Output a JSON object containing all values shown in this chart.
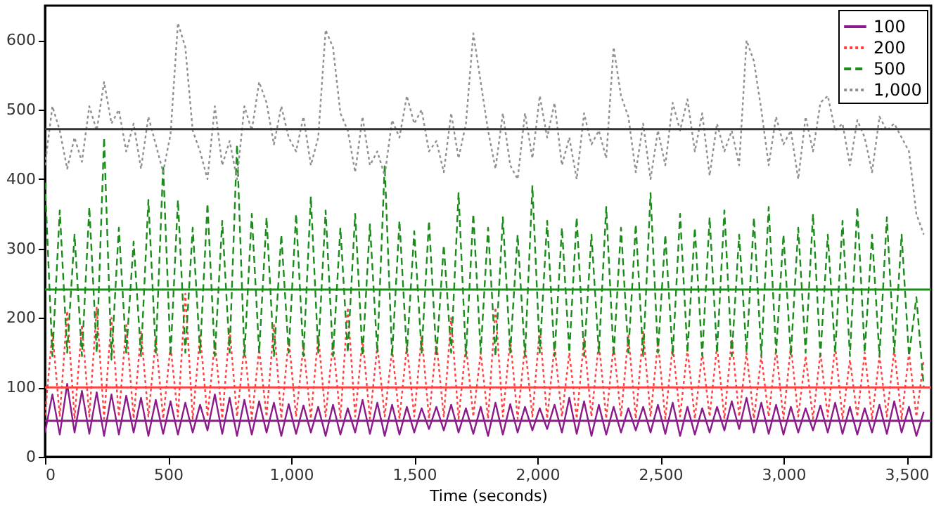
{
  "chart_data": {
    "type": "line",
    "xlabel": "Time (seconds)",
    "xlim": [
      0,
      3600
    ],
    "ylim": [
      0,
      650
    ],
    "xticks": [
      0,
      500,
      {
        "value": 1000,
        "label": "1,000"
      },
      {
        "value": 1500,
        "label": "1,500"
      },
      {
        "value": 2000,
        "label": "2,000"
      },
      {
        "value": 2500,
        "label": "2,500"
      },
      {
        "value": 3000,
        "label": "3,000"
      },
      {
        "value": 3500,
        "label": "3,500"
      }
    ],
    "yticks": [
      0,
      100,
      200,
      300,
      400,
      500,
      600
    ],
    "grid": false,
    "legend": "top right",
    "x": [
      0,
      30,
      60,
      90,
      120,
      150,
      180,
      210,
      240,
      270,
      300,
      330,
      360,
      390,
      420,
      450,
      480,
      510,
      540,
      570,
      600,
      630,
      660,
      690,
      720,
      750,
      780,
      810,
      840,
      870,
      900,
      930,
      960,
      990,
      1020,
      1050,
      1080,
      1110,
      1140,
      1170,
      1200,
      1230,
      1260,
      1290,
      1320,
      1350,
      1380,
      1410,
      1440,
      1470,
      1500,
      1530,
      1560,
      1590,
      1620,
      1650,
      1680,
      1710,
      1740,
      1770,
      1800,
      1830,
      1860,
      1890,
      1920,
      1950,
      1980,
      2010,
      2040,
      2070,
      2100,
      2130,
      2160,
      2190,
      2220,
      2250,
      2280,
      2310,
      2340,
      2370,
      2400,
      2430,
      2460,
      2490,
      2520,
      2550,
      2580,
      2610,
      2640,
      2670,
      2700,
      2730,
      2760,
      2790,
      2820,
      2850,
      2880,
      2910,
      2940,
      2970,
      3000,
      3030,
      3060,
      3090,
      3120,
      3150,
      3180,
      3210,
      3240,
      3270,
      3300,
      3330,
      3360,
      3390,
      3420,
      3450,
      3480,
      3510,
      3540,
      3570
    ],
    "series": [
      {
        "name": "100",
        "color": "#8b1a8b",
        "line_style": "solid",
        "values": [
          35,
          90,
          32,
          105,
          35,
          95,
          33,
          93,
          30,
          90,
          32,
          88,
          35,
          85,
          30,
          82,
          33,
          80,
          32,
          78,
          35,
          75,
          38,
          90,
          33,
          85,
          30,
          82,
          32,
          80,
          35,
          78,
          30,
          76,
          33,
          74,
          35,
          72,
          30,
          75,
          32,
          70,
          35,
          82,
          33,
          78,
          30,
          75,
          32,
          72,
          35,
          70,
          40,
          72,
          38,
          75,
          35,
          70,
          33,
          72,
          30,
          78,
          32,
          76,
          35,
          72,
          38,
          70,
          40,
          75,
          35,
          85,
          33,
          80,
          30,
          75,
          32,
          72,
          35,
          70,
          38,
          72,
          35,
          75,
          33,
          78,
          30,
          72,
          32,
          70,
          35,
          72,
          38,
          80,
          40,
          85,
          35,
          78,
          33,
          75,
          32,
          72,
          35,
          70,
          38,
          74,
          35,
          78,
          33,
          72,
          32,
          70,
          35,
          75,
          33,
          80,
          35,
          72,
          30,
          65
        ]
      },
      {
        "name": "200",
        "color": "#ff4040",
        "line_style": "dotted",
        "values": [
          60,
          180,
          58,
          210,
          55,
          190,
          58,
          215,
          55,
          200,
          58,
          190,
          55,
          180,
          58,
          170,
          55,
          160,
          58,
          235,
          55,
          175,
          58,
          165,
          55,
          185,
          58,
          160,
          55,
          155,
          58,
          190,
          55,
          170,
          58,
          160,
          55,
          175,
          58,
          165,
          55,
          215,
          58,
          170,
          55,
          160,
          58,
          155,
          55,
          160,
          58,
          175,
          55,
          165,
          58,
          200,
          55,
          160,
          58,
          150,
          55,
          215,
          58,
          170,
          55,
          160,
          58,
          185,
          55,
          160,
          58,
          150,
          55,
          170,
          58,
          165,
          55,
          160,
          58,
          175,
          55,
          180,
          58,
          165,
          55,
          160,
          58,
          155,
          55,
          150,
          58,
          160,
          55,
          170,
          58,
          150,
          55,
          145,
          58,
          155,
          55,
          160,
          58,
          145,
          55,
          150,
          58,
          160,
          55,
          140,
          58,
          150,
          55,
          145,
          58,
          155,
          55,
          150,
          58,
          140
        ]
      },
      {
        "name": "500",
        "color": "#1a8c1a",
        "line_style": "dashed",
        "values": [
          395,
          145,
          355,
          150,
          320,
          145,
          360,
          150,
          460,
          140,
          330,
          150,
          310,
          145,
          370,
          150,
          420,
          145,
          370,
          150,
          330,
          150,
          365,
          145,
          340,
          150,
          450,
          145,
          350,
          150,
          345,
          145,
          320,
          150,
          350,
          145,
          375,
          150,
          355,
          145,
          330,
          150,
          350,
          145,
          335,
          150,
          420,
          145,
          340,
          150,
          325,
          150,
          340,
          145,
          305,
          150,
          380,
          145,
          350,
          150,
          330,
          145,
          345,
          150,
          320,
          145,
          390,
          150,
          340,
          145,
          330,
          150,
          345,
          145,
          320,
          150,
          360,
          145,
          330,
          150,
          335,
          145,
          380,
          150,
          320,
          145,
          350,
          150,
          330,
          145,
          345,
          150,
          355,
          145,
          320,
          150,
          345,
          145,
          360,
          150,
          320,
          145,
          330,
          150,
          350,
          145,
          320,
          150,
          340,
          145,
          360,
          150,
          320,
          145,
          345,
          150,
          320,
          145,
          230,
          100
        ]
      },
      {
        "name": "1,000",
        "color": "#909090",
        "line_style": "dotted",
        "values": [
          420,
          505,
          470,
          415,
          460,
          425,
          505,
          470,
          540,
          480,
          500,
          440,
          480,
          415,
          490,
          450,
          410,
          465,
          625,
          590,
          470,
          440,
          400,
          505,
          420,
          455,
          400,
          505,
          470,
          540,
          510,
          450,
          505,
          460,
          440,
          490,
          420,
          460,
          615,
          590,
          495,
          470,
          410,
          490,
          420,
          440,
          405,
          485,
          460,
          520,
          480,
          500,
          440,
          455,
          410,
          495,
          430,
          480,
          610,
          540,
          470,
          415,
          495,
          420,
          400,
          495,
          430,
          520,
          460,
          510,
          420,
          460,
          400,
          495,
          450,
          470,
          430,
          590,
          520,
          490,
          410,
          480,
          400,
          470,
          420,
          510,
          470,
          515,
          440,
          495,
          405,
          480,
          440,
          470,
          420,
          600,
          570,
          500,
          420,
          490,
          450,
          470,
          400,
          490,
          440,
          510,
          520,
          470,
          480,
          420,
          485,
          460,
          410,
          490,
          470,
          480,
          460,
          440,
          350,
          320
        ]
      }
    ],
    "ref_lines": [
      {
        "axis": "y",
        "value": 472,
        "color": "#333333"
      },
      {
        "axis": "y",
        "value": 241,
        "color": "#1a8c1a"
      },
      {
        "axis": "y",
        "value": 100,
        "color": "#ff4040"
      },
      {
        "axis": "y",
        "value": 52,
        "color": "#8b1a8b"
      }
    ]
  }
}
